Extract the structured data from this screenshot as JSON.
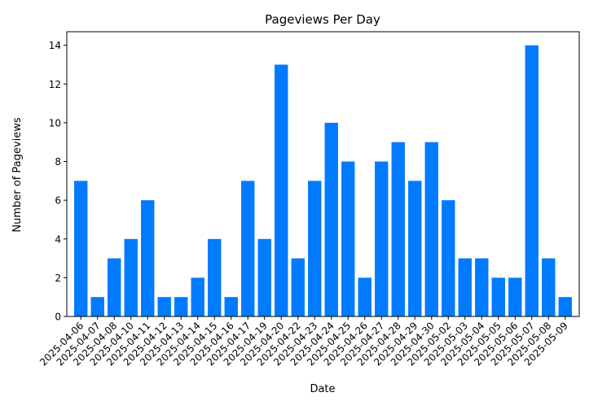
{
  "chart_data": {
    "type": "bar",
    "title": "Pageviews Per Day",
    "xlabel": "Date",
    "ylabel": "Number of Pageviews",
    "ylim": [
      0,
      14.7
    ],
    "yticks": [
      0,
      2,
      4,
      6,
      8,
      10,
      12,
      14
    ],
    "grid": false,
    "bar_color": "#007bff",
    "categories": [
      "2025-04-06",
      "2025-04-07",
      "2025-04-08",
      "2025-04-10",
      "2025-04-11",
      "2025-04-12",
      "2025-04-13",
      "2025-04-14",
      "2025-04-15",
      "2025-04-16",
      "2025-04-17",
      "2025-04-19",
      "2025-04-20",
      "2025-04-22",
      "2025-04-23",
      "2025-04-24",
      "2025-04-25",
      "2025-04-26",
      "2025-04-27",
      "2025-04-28",
      "2025-04-29",
      "2025-04-30",
      "2025-05-02",
      "2025-05-03",
      "2025-05-04",
      "2025-05-05",
      "2025-05-06",
      "2025-05-07",
      "2025-05-08",
      "2025-05-09"
    ],
    "values": [
      7,
      1,
      3,
      4,
      6,
      1,
      1,
      2,
      4,
      1,
      7,
      4,
      13,
      3,
      7,
      10,
      8,
      2,
      8,
      9,
      7,
      9,
      6,
      3,
      3,
      2,
      2,
      14,
      3,
      1
    ]
  }
}
